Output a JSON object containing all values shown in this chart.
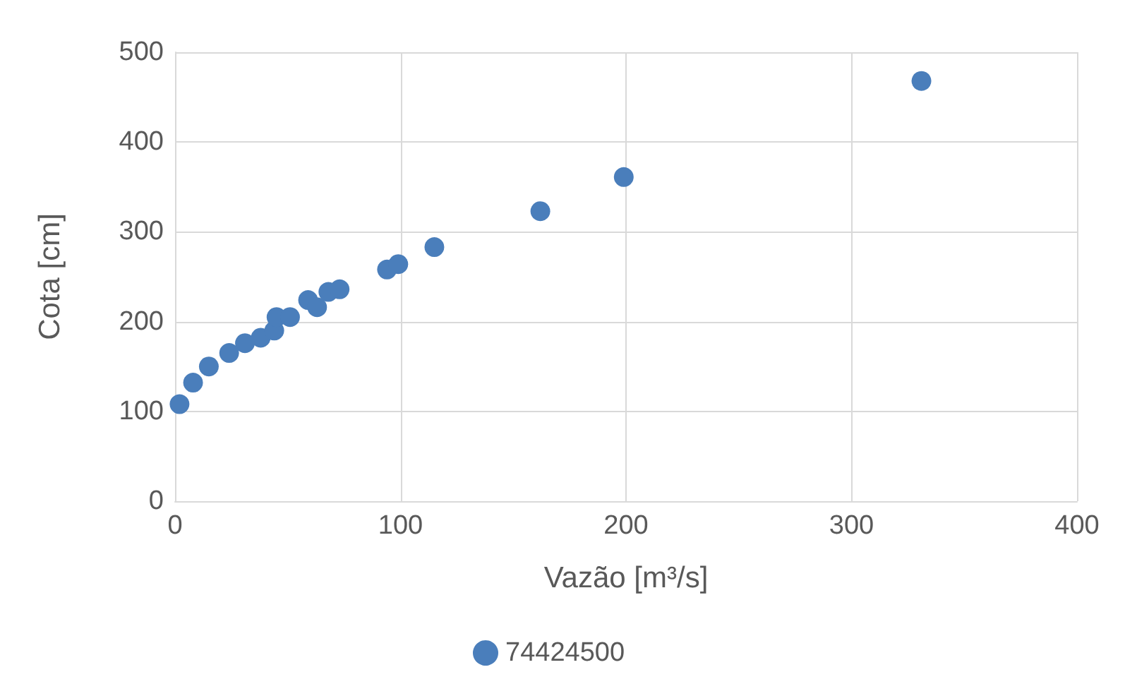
{
  "chart_data": {
    "type": "scatter",
    "xlabel": "Vazão [m³/s]",
    "ylabel": "Cota [cm]",
    "series": [
      {
        "name": "74424500",
        "color": "#4a7ebb",
        "x": [
          2,
          8,
          15,
          24,
          31,
          38,
          44,
          45,
          51,
          59,
          63,
          68,
          73,
          94,
          99,
          115,
          162,
          199,
          331
        ],
        "values": [
          108,
          132,
          150,
          165,
          176,
          182,
          190,
          205,
          205,
          224,
          216,
          233,
          236,
          258,
          264,
          283,
          323,
          361,
          468
        ]
      }
    ],
    "xlim": [
      0,
      400
    ],
    "xticks": [
      0,
      100,
      200,
      300,
      400
    ],
    "ylim": [
      0,
      500
    ],
    "yticks": [
      0,
      100,
      200,
      300,
      400,
      500
    ],
    "grid": true,
    "legend": "bottom",
    "marker": "circle"
  }
}
